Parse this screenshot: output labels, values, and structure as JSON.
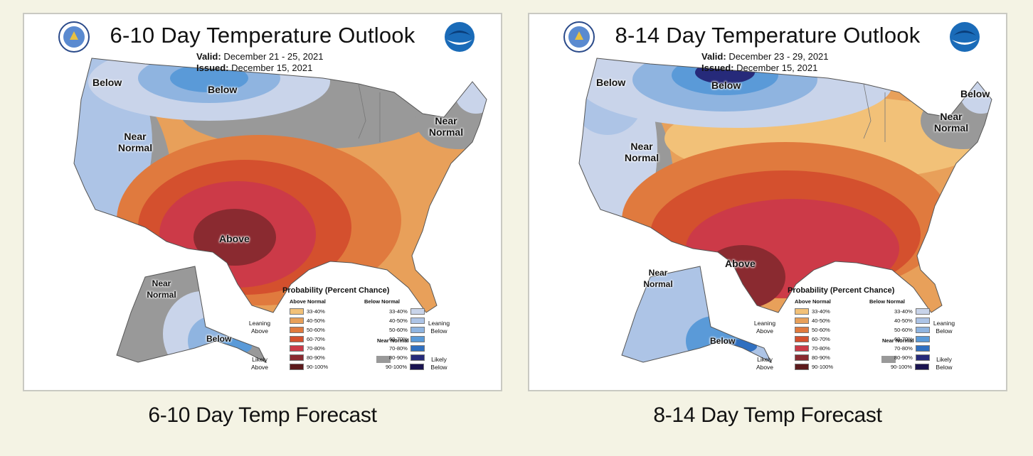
{
  "colors": {
    "page_background": "#f4f3e4",
    "above_33_40": "#f2c178",
    "above_40_50": "#e8a05a",
    "above_50_60": "#e07a3e",
    "above_60_70": "#d4502e",
    "above_70_80": "#cc3a48",
    "above_80_90": "#8a2a30",
    "above_90_100": "#5c1a1c",
    "below_33_40": "#c9d4ea",
    "below_40_50": "#adc4e6",
    "below_50_60": "#8fb4e0",
    "below_60_70": "#5a9ad8",
    "below_70_80": "#2f6fc0",
    "below_80_90": "#262a7a",
    "below_90_100": "#1a1450",
    "near_normal": "#999999"
  },
  "maps": [
    {
      "title": "6-10 Day Temperature Outlook",
      "valid_label": "Valid:",
      "valid_dates": "December 21 - 25, 2021",
      "issued_label": "Issued:",
      "issued_date": "December 15, 2021",
      "labels": {
        "below_west": "Below",
        "below_north": "Below",
        "below_northeast": "",
        "near_normal_ne": "Near Normal",
        "near_normal_west": "Near Normal",
        "above": "Above",
        "near_normal_ak": "Near Normal",
        "below_ak": "Below"
      },
      "caption": "6-10 Day Temp Forecast"
    },
    {
      "title": "8-14 Day Temperature Outlook",
      "valid_label": "Valid:",
      "valid_dates": "December 23 - 29, 2021",
      "issued_label": "Issued:",
      "issued_date": "December 15, 2021",
      "labels": {
        "below_west": "Below",
        "below_north": "Below",
        "below_northeast": "Below",
        "near_normal_ne": "Near Normal",
        "near_normal_west": "Near Normal",
        "above": "Above",
        "near_normal_ak": "Near Normal",
        "below_ak": "Below"
      },
      "caption": "8-14 Day Temp Forecast"
    }
  ],
  "legend": {
    "title": "Probability (Percent Chance)",
    "above_header": "Above Normal",
    "below_header": "Below Normal",
    "leaning_above": "Leaning Above",
    "likely_above": "Likely Above",
    "leaning_below": "Leaning Below",
    "likely_below": "Likely Below",
    "near_normal": "Near Normal",
    "ranges": [
      "33-40%",
      "40-50%",
      "50-60%",
      "60-70%",
      "70-80%",
      "80-90%",
      "90-100%"
    ]
  }
}
